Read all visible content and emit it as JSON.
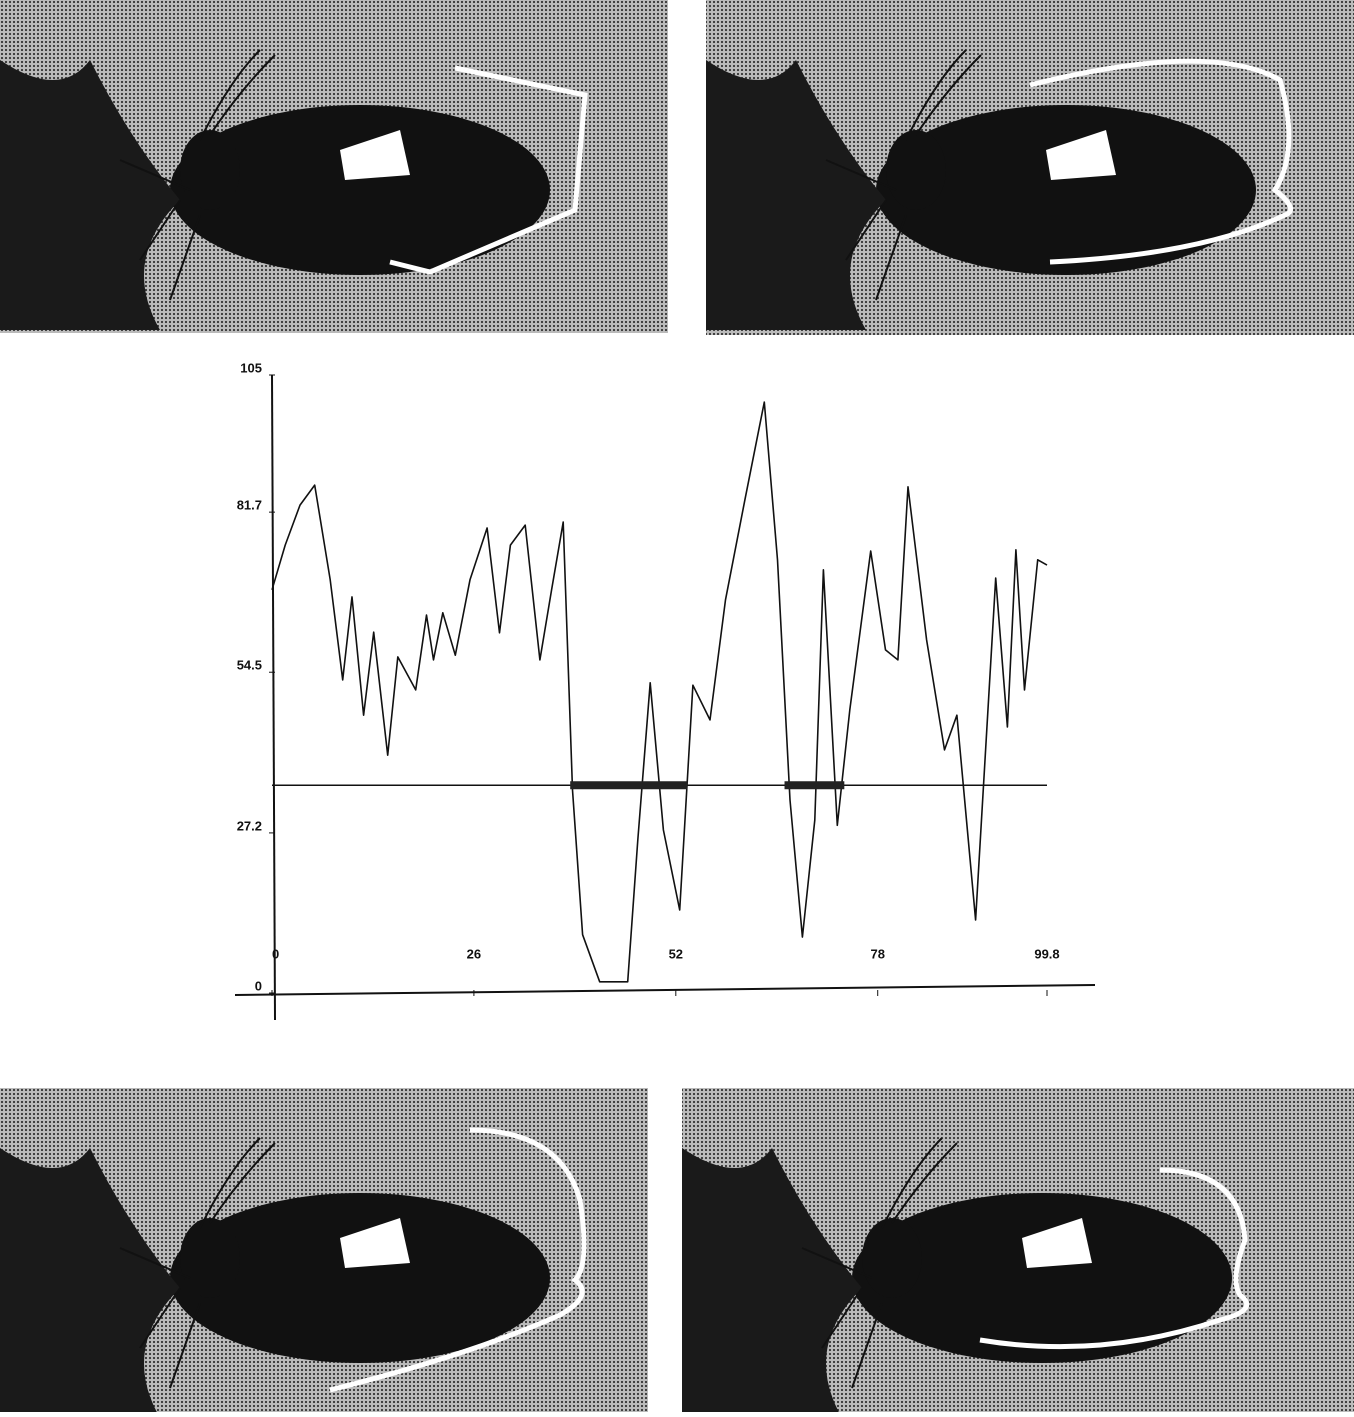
{
  "chart_data": {
    "type": "line",
    "x": [
      0,
      1.7,
      3.6,
      5.5,
      7.5,
      9.1,
      10.3,
      11.8,
      13.1,
      14.9,
      16.2,
      18.5,
      19.9,
      20.8,
      22.0,
      23.6,
      25.5,
      27.7,
      29.3,
      30.7,
      32.6,
      34.5,
      36.0,
      37.5,
      38.7,
      40.0,
      42.2,
      45.8,
      47.1,
      48.7,
      50.4,
      52.5,
      54.2,
      56.4,
      58.4,
      60.9,
      63.4,
      65.1,
      66.7,
      68.3,
      69.9,
      71.0,
      72.8,
      74.4,
      77.1,
      79.0,
      80.6,
      81.9,
      84.3,
      86.6,
      88.2,
      90.6,
      93.2,
      94.7,
      95.8,
      96.9,
      98.6,
      99.8
    ],
    "values": [
      68.5,
      76.1,
      82.9,
      86.3,
      70.2,
      53.2,
      67.3,
      47.2,
      61.3,
      40.4,
      57.1,
      51.5,
      64.2,
      56.6,
      64.6,
      57.4,
      70.2,
      79.0,
      61.2,
      76.1,
      79.5,
      56.6,
      68.5,
      80.0,
      34.5,
      9.9,
      1.9,
      1.9,
      26.0,
      52.7,
      27.7,
      14.1,
      52.3,
      46.4,
      66.8,
      83.8,
      100.4,
      73.6,
      32.8,
      9.5,
      29.4,
      71.9,
      28.5,
      48.1,
      75.1,
      58.3,
      56.6,
      86.0,
      60.0,
      41.3,
      47.2,
      12.4,
      70.5,
      45.2,
      75.3,
      51.5,
      73.6,
      72.7
    ],
    "color": "#111111",
    "threshold": 35.3,
    "segments": [
      [
        38.4,
        53.5
      ],
      [
        66.0,
        73.7
      ]
    ],
    "xlim": [
      0,
      99.8
    ],
    "xticks": [
      0,
      26,
      52,
      78,
      99.8
    ],
    "ylim": [
      0,
      105
    ],
    "yticks": [
      0,
      27.2,
      54.5,
      81.7,
      105
    ]
  }
}
